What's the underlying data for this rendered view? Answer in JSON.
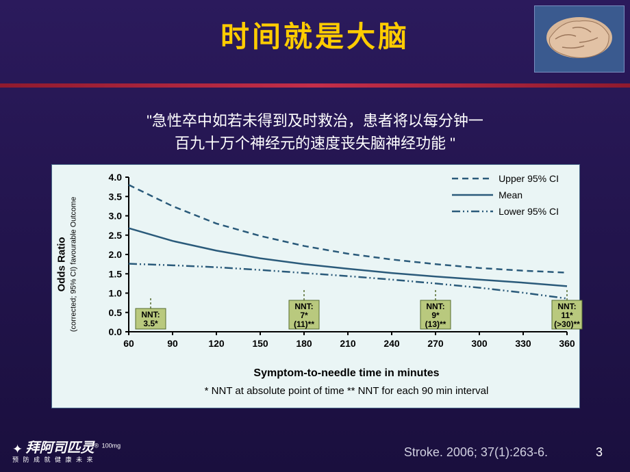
{
  "slide": {
    "title": "时间就是大脑",
    "subtitle_line1": "\"急性卒中如若未得到及时救治，患者将以每分钟一",
    "subtitle_line2": "百九十万个神经元的速度丧失脑神经功能 \"",
    "citation": "Stroke. 2006; 37(1):263-6.",
    "page_number": "3",
    "logo_main": "拜阿司匹灵",
    "logo_dose": "100mg",
    "logo_tag": "预 防 成 就 健 康 未 来",
    "bg_gradient_top": "#2b1a5c",
    "bg_gradient_bottom": "#1a0f3e",
    "title_color": "#ffcc00",
    "subtitle_color": "#ffffff",
    "divider_colors": [
      "#8f1a2e",
      "#c42e4a",
      "#8f1a2e"
    ]
  },
  "chart": {
    "type": "line",
    "background_color": "#eaf5f5",
    "border_color": "#4a6a8a",
    "xlim": [
      60,
      360
    ],
    "ylim": [
      0.0,
      4.0
    ],
    "xtick_step": 30,
    "ytick_step": 0.5,
    "xticks": [
      60,
      90,
      120,
      150,
      180,
      210,
      240,
      270,
      300,
      330,
      360
    ],
    "yticks": [
      0.0,
      0.5,
      1.0,
      1.5,
      2.0,
      2.5,
      3.0,
      3.5,
      4.0
    ],
    "x_label": "Symptom-to-needle time in minutes",
    "y_label_line1": "Odds Ratio",
    "y_label_line2": "(corrected; 95% CI) favourable Outcome",
    "footnote": "* NNT at absolute point of time   ** NNT for each 90 min interval",
    "axis_color": "#000000",
    "tick_fontsize": 14,
    "label_fontsize": 16,
    "footnote_fontsize": 15,
    "grid": false,
    "series": {
      "upper": {
        "label": "Upper 95% CI",
        "color": "#2a5a7a",
        "line_width": 2.5,
        "dash": "9,6",
        "x": [
          60,
          90,
          120,
          150,
          180,
          210,
          240,
          270,
          300,
          330,
          360
        ],
        "y": [
          3.8,
          3.25,
          2.8,
          2.48,
          2.22,
          2.02,
          1.87,
          1.75,
          1.65,
          1.58,
          1.53
        ]
      },
      "mean": {
        "label": "Mean",
        "color": "#2a5a7a",
        "line_width": 2.5,
        "dash": "none",
        "x": [
          60,
          90,
          120,
          150,
          180,
          210,
          240,
          270,
          300,
          330,
          360
        ],
        "y": [
          2.68,
          2.35,
          2.1,
          1.9,
          1.75,
          1.63,
          1.52,
          1.43,
          1.35,
          1.27,
          1.18
        ]
      },
      "lower": {
        "label": "Lower 95% CI",
        "color": "#2a5a7a",
        "line_width": 2.5,
        "dash": "12,4,2,4,2,4",
        "x": [
          60,
          90,
          120,
          150,
          180,
          210,
          240,
          270,
          300,
          330,
          360
        ],
        "y": [
          1.76,
          1.72,
          1.67,
          1.6,
          1.52,
          1.44,
          1.35,
          1.25,
          1.14,
          1.01,
          0.86
        ]
      }
    },
    "nnt_boxes": [
      {
        "x_center": 75,
        "line1": "NNT:",
        "line2": "3.5*",
        "line3": ""
      },
      {
        "x_center": 180,
        "line1": "NNT:",
        "line2": "7*",
        "line3": "(11)**"
      },
      {
        "x_center": 270,
        "line1": "NNT:",
        "line2": "9*",
        "line3": "(13)**"
      },
      {
        "x_center": 360,
        "line1": "NNT:",
        "line2": "11*",
        "line3": "(>30)**"
      }
    ],
    "nnt_box_bg": "#b9c97e",
    "nnt_box_border": "#556b2f",
    "nnt_fontsize": 12
  }
}
